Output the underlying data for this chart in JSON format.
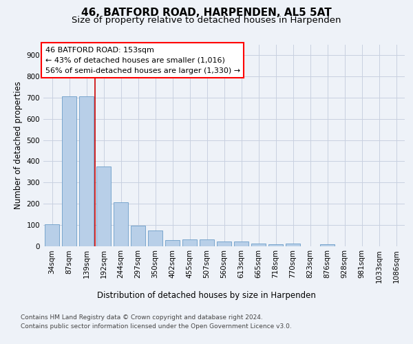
{
  "title1": "46, BATFORD ROAD, HARPENDEN, AL5 5AT",
  "title2": "Size of property relative to detached houses in Harpenden",
  "xlabel": "Distribution of detached houses by size in Harpenden",
  "ylabel": "Number of detached properties",
  "categories": [
    "34sqm",
    "87sqm",
    "139sqm",
    "192sqm",
    "244sqm",
    "297sqm",
    "350sqm",
    "402sqm",
    "455sqm",
    "507sqm",
    "560sqm",
    "613sqm",
    "665sqm",
    "718sqm",
    "770sqm",
    "823sqm",
    "876sqm",
    "928sqm",
    "981sqm",
    "1033sqm",
    "1086sqm"
  ],
  "values": [
    102,
    707,
    707,
    375,
    207,
    96,
    74,
    29,
    31,
    32,
    20,
    20,
    10,
    9,
    10,
    0,
    8,
    0,
    0,
    0,
    0
  ],
  "bar_color": "#b8cfe8",
  "bar_edge_color": "#6a9cc8",
  "vline_color": "#cc0000",
  "annotation_line1": "46 BATFORD ROAD: 153sqm",
  "annotation_line2": "← 43% of detached houses are smaller (1,016)",
  "annotation_line3": "56% of semi-detached houses are larger (1,330) →",
  "footer_line1": "Contains HM Land Registry data © Crown copyright and database right 2024.",
  "footer_line2": "Contains public sector information licensed under the Open Government Licence v3.0.",
  "bg_color": "#eef2f8",
  "ylim": [
    0,
    950
  ],
  "yticks": [
    0,
    100,
    200,
    300,
    400,
    500,
    600,
    700,
    800,
    900
  ],
  "grid_color": "#c8d0e0",
  "title1_fontsize": 11,
  "title2_fontsize": 9.5,
  "ylabel_fontsize": 8.5,
  "tick_fontsize": 7.5,
  "footer_fontsize": 6.5,
  "annotation_fontsize": 8
}
